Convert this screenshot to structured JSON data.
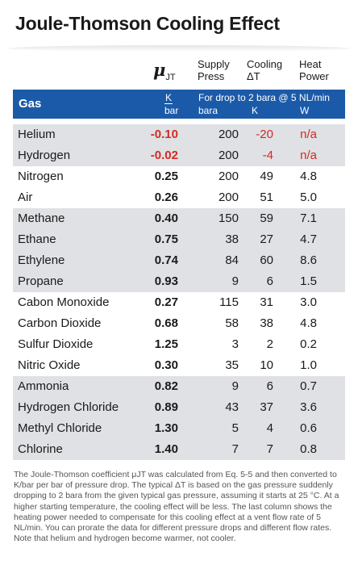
{
  "title": "Joule-Thomson Cooling Effect",
  "headers": {
    "mu_symbol": "μ",
    "mu_sub": "JT",
    "supply_1": "Supply",
    "supply_2": "Press",
    "cooling_1": "Cooling",
    "cooling_2": "ΔT",
    "heat_1": "Heat",
    "heat_2": "Power"
  },
  "bar": {
    "gas": "Gas",
    "unit_k": "K",
    "unit_bar": "bar",
    "note": "For drop to 2 bara @ 5 NL/min",
    "u_press": "bara",
    "u_cool": "K",
    "u_heat": "W"
  },
  "rows": [
    {
      "name": "Helium",
      "mu": "-0.10",
      "press": "200",
      "cool": "-20",
      "heat": "n/a",
      "red": true
    },
    {
      "name": "Hydrogen",
      "mu": "-0.02",
      "press": "200",
      "cool": "-4",
      "heat": "n/a",
      "red": true
    },
    {
      "name": "Nitrogen",
      "mu": "0.25",
      "press": "200",
      "cool": "49",
      "heat": "4.8"
    },
    {
      "name": "Air",
      "mu": "0.26",
      "press": "200",
      "cool": "51",
      "heat": "5.0"
    },
    {
      "name": "Methane",
      "mu": "0.40",
      "press": "150",
      "cool": "59",
      "heat": "7.1"
    },
    {
      "name": "Ethane",
      "mu": "0.75",
      "press": "38",
      "cool": "27",
      "heat": "4.7"
    },
    {
      "name": "Ethylene",
      "mu": "0.74",
      "press": "84",
      "cool": "60",
      "heat": "8.6"
    },
    {
      "name": "Propane",
      "mu": "0.93",
      "press": "9",
      "cool": "6",
      "heat": "1.5"
    },
    {
      "name": "Cabon Monoxide",
      "mu": "0.27",
      "press": "115",
      "cool": "31",
      "heat": "3.0"
    },
    {
      "name": "Carbon Dioxide",
      "mu": "0.68",
      "press": "58",
      "cool": "38",
      "heat": "4.8"
    },
    {
      "name": "Sulfur Dioxide",
      "mu": "1.25",
      "press": "3",
      "cool": "2",
      "heat": "0.2"
    },
    {
      "name": "Nitric Oxide",
      "mu": "0.30",
      "press": "35",
      "cool": "10",
      "heat": "1.0"
    },
    {
      "name": "Ammonia",
      "mu": "0.82",
      "press": "9",
      "cool": "6",
      "heat": "0.7"
    },
    {
      "name": "Hydrogen Chloride",
      "mu": "0.89",
      "press": "43",
      "cool": "37",
      "heat": "3.6"
    },
    {
      "name": "Methyl Chloride",
      "mu": "1.30",
      "press": "5",
      "cool": "4",
      "heat": "0.6"
    },
    {
      "name": "Chlorine",
      "mu": "1.40",
      "press": "7",
      "cool": "7",
      "heat": "0.8"
    }
  ],
  "row_shading": [
    "gray",
    "gray",
    "white",
    "white",
    "gray",
    "gray",
    "gray",
    "gray",
    "white",
    "white",
    "white",
    "white",
    "gray",
    "gray",
    "gray",
    "gray"
  ],
  "colors": {
    "header_blue": "#1b5aa8",
    "row_gray": "#dfe1e4",
    "negative_red": "#d42a20"
  },
  "footnote": "The Joule-Thomson coefficient μJT was calculated from Eq. 5-5 and then converted to K/bar per bar of pressure drop. The typical ΔT is based on the gas pressure suddenly dropping to 2 bara from the given typical gas pressure, assuming it starts at 25 °C. At a higher starting temperature, the cooling effect will be less. The last column shows the heating power needed to compensate for this cooling effect at a vent flow rate of 5 NL/min. You can prorate the data for different pressure drops and different flow rates. Note that helium and hydrogen become warmer, not cooler."
}
